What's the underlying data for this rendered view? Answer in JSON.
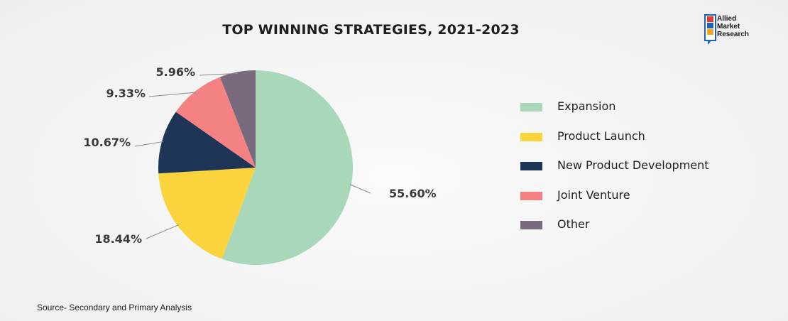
{
  "chart_data": {
    "type": "pie",
    "title": "TOP WINNING STRATEGIES, 2021-2023",
    "slices": [
      {
        "label": "Expansion",
        "value": 55.6,
        "display": "55.60%",
        "color": "#a8d8b9"
      },
      {
        "label": "Product Launch",
        "value": 18.44,
        "display": "18.44%",
        "color": "#fad33d"
      },
      {
        "label": "New Product Development",
        "value": 10.67,
        "display": "10.67%",
        "color": "#1f3556"
      },
      {
        "label": "Joint Venture",
        "value": 9.33,
        "display": "9.33%",
        "color": "#f58282"
      },
      {
        "label": "Other",
        "value": 5.96,
        "display": "5.96%",
        "color": "#7a6a7e"
      }
    ],
    "legend_position": "right"
  },
  "logo": {
    "text_lines": [
      "Allied",
      "Market",
      "Research"
    ],
    "colors": [
      "#e53935",
      "#1f63b0",
      "#f5a623",
      "#2e7d32"
    ]
  },
  "source": "Source- Secondary and Primary Analysis"
}
